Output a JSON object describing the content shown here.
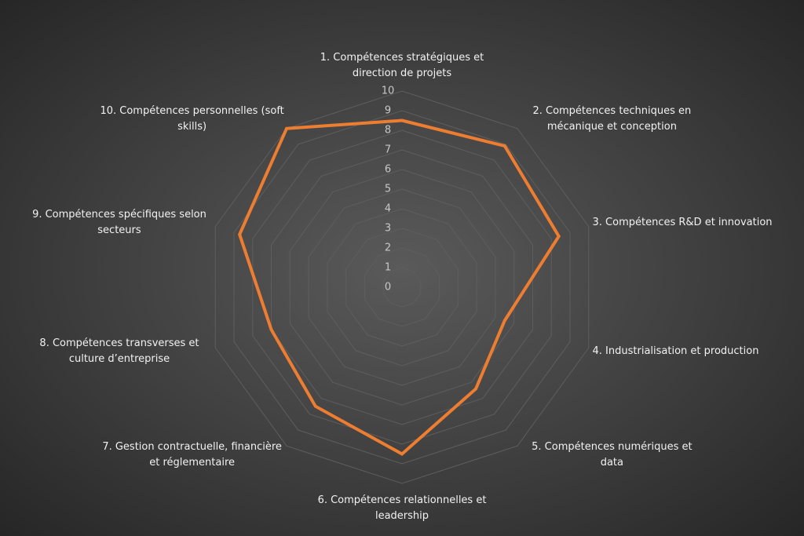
{
  "chart_data": {
    "type": "radar",
    "categories": [
      "1. Compétences stratégiques et direction de projets",
      "2. Compétences techniques en mécanique et conception",
      "3. Compétences R&D et innovation",
      "4. Industrialisation et production",
      "5. Compétences numériques et data",
      "6. Compétences relationnelles et leadership",
      "7. Gestion contractuelle, financière et réglementaire",
      "8. Compétences transverses et culture d’entreprise",
      "9. Compétences spécifiques selon secteurs",
      "10. Compétences personnelles (soft skills)"
    ],
    "series": [
      {
        "color": "#ed7d31",
        "values": [
          8.5,
          8.9,
          8.4,
          5.5,
          6.4,
          8.5,
          7.5,
          7,
          8.7,
          10
        ]
      }
    ],
    "ylim": [
      0,
      10
    ],
    "yticks": [
      0,
      1,
      2,
      3,
      4,
      5,
      6,
      7,
      8,
      9,
      10
    ],
    "grid": true
  }
}
